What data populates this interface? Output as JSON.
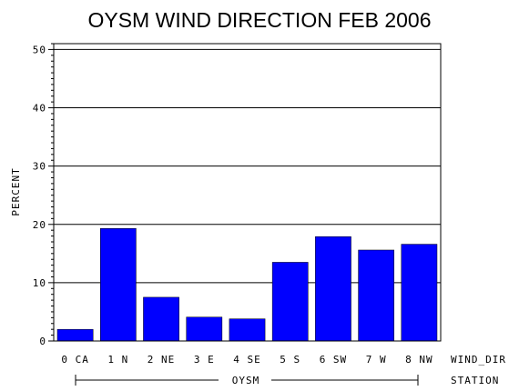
{
  "chart_data": {
    "type": "bar",
    "title": "OYSM WIND DIRECTION FEB 2006",
    "ylabel": "PERCENT",
    "xlabel": "WIND_DIR",
    "group_label": "STATION",
    "group_name": "OYSM",
    "ylim": [
      0,
      51
    ],
    "yticks": [
      0,
      10,
      20,
      30,
      40,
      50
    ],
    "grid": true,
    "categories": [
      "0 CA",
      "1 N",
      "2 NE",
      "3 E",
      "4 SE",
      "5 S",
      "6 SW",
      "7 W",
      "8 NW"
    ],
    "values": [
      2.0,
      19.3,
      7.5,
      4.1,
      3.8,
      13.5,
      17.9,
      15.6,
      16.6
    ],
    "bar_color": "#0000ff"
  }
}
